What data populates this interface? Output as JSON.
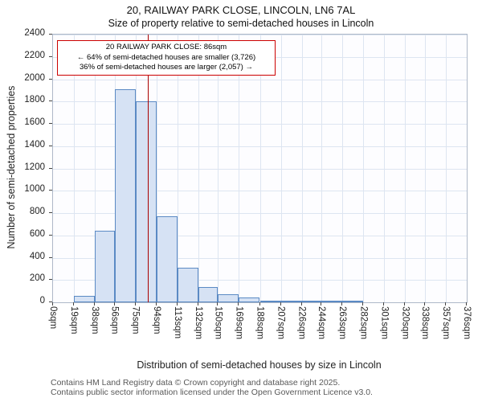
{
  "chart_data": {
    "type": "bar",
    "title": "20, RAILWAY PARK CLOSE, LINCOLN, LN6 7AL",
    "subtitle": "Size of property relative to semi-detached houses in Lincoln",
    "xlabel": "Distribution of semi-detached houses by size in Lincoln",
    "ylabel": "Number of semi-detached properties",
    "bin_edges_sqm": [
      0,
      19,
      38,
      56,
      75,
      94,
      113,
      132,
      150,
      169,
      188,
      207,
      226,
      244,
      263,
      282,
      301,
      320,
      338,
      357,
      376
    ],
    "tick_labels": [
      "0sqm",
      "19sqm",
      "38sqm",
      "56sqm",
      "75sqm",
      "94sqm",
      "113sqm",
      "132sqm",
      "150sqm",
      "169sqm",
      "188sqm",
      "207sqm",
      "226sqm",
      "244sqm",
      "263sqm",
      "282sqm",
      "301sqm",
      "320sqm",
      "338sqm",
      "357sqm",
      "376sqm"
    ],
    "values": [
      0,
      55,
      640,
      1910,
      1800,
      770,
      310,
      140,
      75,
      40,
      15,
      10,
      8,
      5,
      2,
      0,
      0,
      0,
      0,
      0
    ],
    "ylim": [
      0,
      2400
    ],
    "ytick_step": 200,
    "grid": true,
    "legend": "none",
    "bar_fill": "#d6e2f4",
    "bar_stroke": "#5b8ac4",
    "marker": {
      "sqm": 86,
      "color": "#aa0000"
    },
    "annotation": {
      "line1": "20 RAILWAY PARK CLOSE: 86sqm",
      "line2": "← 64% of semi-detached houses are smaller (3,726)",
      "line3": "36% of semi-detached houses are larger (2,057) →"
    }
  },
  "footer": {
    "line1": "Contains HM Land Registry data © Crown copyright and database right 2025.",
    "line2": "Contains public sector information licensed under the Open Government Licence v3.0."
  }
}
